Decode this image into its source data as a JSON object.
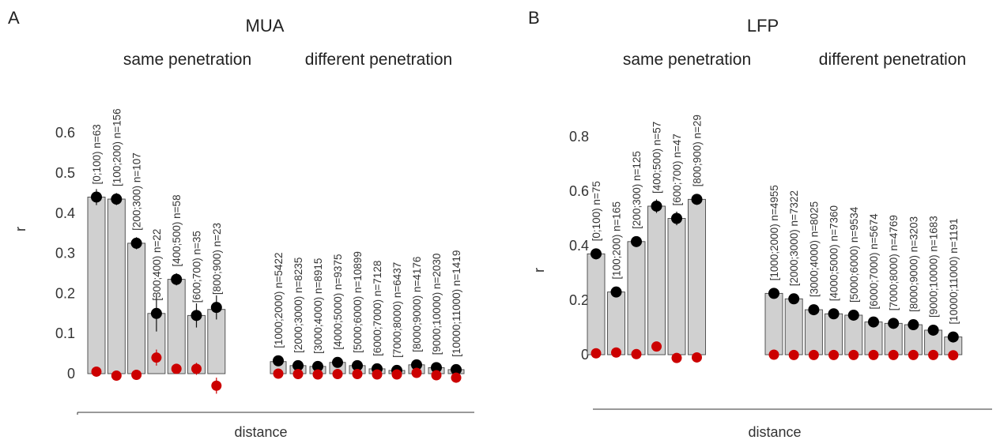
{
  "chart_data": [
    {
      "type": "bar",
      "panel": "A",
      "title": "MUA",
      "xlabel": "distance",
      "ylabel": "r",
      "ylim": [
        0,
        0.6
      ],
      "yticks": [
        "0",
        "0.1",
        "0.2",
        "0.3",
        "0.4",
        "0.5",
        "0.6"
      ],
      "grid": false,
      "groups": [
        {
          "label": "same penetration",
          "bars": [
            {
              "label": "[0;100) n=63",
              "value": 0.44,
              "black": 0.44,
              "black_err": 0.02,
              "red": 0.005,
              "red_err": 0.003
            },
            {
              "label": "[100;200) n=156",
              "value": 0.435,
              "black": 0.435,
              "black_err": 0.015,
              "red": -0.005,
              "red_err": 0.003
            },
            {
              "label": "[200;300) n=107",
              "value": 0.325,
              "black": 0.325,
              "black_err": 0.015,
              "red": -0.003,
              "red_err": 0.003
            },
            {
              "label": "[300;400) n=22",
              "value": 0.15,
              "black": 0.15,
              "black_err": 0.045,
              "red": 0.04,
              "red_err": 0.02
            },
            {
              "label": "[400;500) n=58",
              "value": 0.235,
              "black": 0.235,
              "black_err": 0.015,
              "red": 0.012,
              "red_err": 0.005
            },
            {
              "label": "[600;700) n=35",
              "value": 0.145,
              "black": 0.145,
              "black_err": 0.03,
              "red": 0.012,
              "red_err": 0.015
            },
            {
              "label": "[800;900) n=23",
              "value": 0.16,
              "black": 0.165,
              "black_err": 0.03,
              "red": -0.03,
              "red_err": 0.02
            }
          ]
        },
        {
          "label": "different penetration",
          "bars": [
            {
              "label": "[1000;2000) n=5422",
              "value": 0.03,
              "black": 0.032,
              "black_err": 0.002,
              "red": 0.0,
              "red_err": 0.002
            },
            {
              "label": "[2000;3000) n=8235",
              "value": 0.02,
              "black": 0.02,
              "black_err": 0.002,
              "red": -0.001,
              "red_err": 0.002
            },
            {
              "label": "[3000;4000) n=8915",
              "value": 0.018,
              "black": 0.018,
              "black_err": 0.002,
              "red": -0.002,
              "red_err": 0.002
            },
            {
              "label": "[4000;5000) n=9375",
              "value": 0.028,
              "black": 0.028,
              "black_err": 0.002,
              "red": -0.001,
              "red_err": 0.002
            },
            {
              "label": "[5000;6000) n=10899",
              "value": 0.02,
              "black": 0.02,
              "black_err": 0.002,
              "red": -0.001,
              "red_err": 0.002
            },
            {
              "label": "[6000;7000) n=7128",
              "value": 0.012,
              "black": 0.012,
              "black_err": 0.002,
              "red": -0.002,
              "red_err": 0.002
            },
            {
              "label": "[7000;8000) n=6437",
              "value": 0.008,
              "black": 0.008,
              "black_err": 0.002,
              "red": -0.002,
              "red_err": 0.002
            },
            {
              "label": "[8000;9000) n=4176",
              "value": 0.022,
              "black": 0.022,
              "black_err": 0.002,
              "red": 0.002,
              "red_err": 0.002
            },
            {
              "label": "[9000;10000) n=2030",
              "value": 0.015,
              "black": 0.015,
              "black_err": 0.002,
              "red": -0.004,
              "red_err": 0.002
            },
            {
              "label": "[10000;11000) n=1419",
              "value": 0.01,
              "black": 0.01,
              "black_err": 0.002,
              "red": -0.01,
              "red_err": 0.003
            }
          ]
        }
      ]
    },
    {
      "type": "bar",
      "panel": "B",
      "title": "LFP",
      "xlabel": "distance",
      "ylabel": "r",
      "ylim": [
        0,
        0.8
      ],
      "yticks": [
        "0",
        "0.2",
        "0.4",
        "0.6",
        "0.8"
      ],
      "grid": false,
      "groups": [
        {
          "label": "same penetration",
          "bars": [
            {
              "label": "[0;100) n=75",
              "value": 0.37,
              "black": 0.37,
              "black_err": 0.02,
              "red": 0.005,
              "red_err": 0.003
            },
            {
              "label": "[100;200) n=165",
              "value": 0.23,
              "black": 0.23,
              "black_err": 0.01,
              "red": 0.008,
              "red_err": 0.003
            },
            {
              "label": "[200;300) n=125",
              "value": 0.415,
              "black": 0.415,
              "black_err": 0.015,
              "red": 0.002,
              "red_err": 0.003
            },
            {
              "label": "[400;500) n=57",
              "value": 0.545,
              "black": 0.545,
              "black_err": 0.025,
              "red": 0.03,
              "red_err": 0.005
            },
            {
              "label": "[600;700) n=47",
              "value": 0.5,
              "black": 0.5,
              "black_err": 0.025,
              "red": -0.012,
              "red_err": 0.004
            },
            {
              "label": "[800;900) n=29",
              "value": 0.57,
              "black": 0.57,
              "black_err": 0.02,
              "red": -0.01,
              "red_err": 0.004
            }
          ]
        },
        {
          "label": "different penetration",
          "bars": [
            {
              "label": "[1000;2000) n=4955",
              "value": 0.225,
              "black": 0.225,
              "black_err": 0.005,
              "red": 0.0,
              "red_err": 0.002
            },
            {
              "label": "[2000;3000) n=7322",
              "value": 0.205,
              "black": 0.205,
              "black_err": 0.005,
              "red": -0.001,
              "red_err": 0.002
            },
            {
              "label": "[3000;4000) n=8025",
              "value": 0.165,
              "black": 0.165,
              "black_err": 0.005,
              "red": -0.001,
              "red_err": 0.002
            },
            {
              "label": "[4000;5000) n=7360",
              "value": 0.15,
              "black": 0.15,
              "black_err": 0.005,
              "red": -0.001,
              "red_err": 0.002
            },
            {
              "label": "[5000;6000) n=9534",
              "value": 0.145,
              "black": 0.145,
              "black_err": 0.005,
              "red": -0.001,
              "red_err": 0.002
            },
            {
              "label": "[6000;7000) n=5674",
              "value": 0.12,
              "black": 0.12,
              "black_err": 0.005,
              "red": -0.001,
              "red_err": 0.002
            },
            {
              "label": "[7000;8000) n=4769",
              "value": 0.115,
              "black": 0.115,
              "black_err": 0.005,
              "red": -0.001,
              "red_err": 0.002
            },
            {
              "label": "[8000;9000) n=3203",
              "value": 0.11,
              "black": 0.11,
              "black_err": 0.005,
              "red": -0.001,
              "red_err": 0.002
            },
            {
              "label": "[9000;10000) n=1683",
              "value": 0.09,
              "black": 0.09,
              "black_err": 0.005,
              "red": -0.001,
              "red_err": 0.002
            },
            {
              "label": "[10000;11000) n=1191",
              "value": 0.065,
              "black": 0.065,
              "black_err": 0.005,
              "red": -0.002,
              "red_err": 0.002
            }
          ]
        }
      ]
    }
  ],
  "colors": {
    "bar_fill": "#d0d0d0",
    "bar_stroke": "#444444",
    "black_marker": "#000000",
    "red_marker": "#cc0000",
    "axis": "#333333"
  }
}
